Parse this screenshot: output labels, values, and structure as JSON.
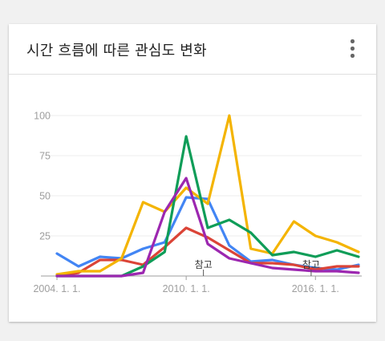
{
  "card": {
    "title": "시간 흐름에 따른 관심도 변화",
    "menu_icon": "more-vert-icon"
  },
  "chart_data": {
    "type": "line",
    "ylim": [
      0,
      100
    ],
    "y_ticks": [
      25,
      50,
      75,
      100
    ],
    "x_tick_labels": [
      "2004. 1. 1.",
      "2010. 1. 1.",
      "2016. 1. 1."
    ],
    "x_tick_positions": [
      0,
      6,
      12
    ],
    "x": [
      0,
      1,
      2,
      3,
      4,
      5,
      6,
      7,
      8,
      9,
      10,
      11,
      12,
      13,
      14
    ],
    "annotations": [
      {
        "label": "참고",
        "x": 6.8
      },
      {
        "label": "참고",
        "x": 11.8
      }
    ],
    "grid": true,
    "series": [
      {
        "color": "#4285f4",
        "values": [
          14,
          6,
          12,
          11,
          17,
          21,
          49,
          48,
          19,
          9,
          10,
          7,
          5,
          4,
          7
        ]
      },
      {
        "color": "#db4437",
        "values": [
          0,
          2,
          10,
          10,
          7,
          18,
          30,
          24,
          16,
          8,
          8,
          7,
          4,
          6,
          6
        ]
      },
      {
        "color": "#f4b400",
        "values": [
          1,
          3,
          3,
          11,
          46,
          40,
          55,
          45,
          100,
          17,
          14,
          34,
          25,
          21,
          15
        ]
      },
      {
        "color": "#0f9d58",
        "values": [
          0,
          0,
          0,
          0,
          6,
          15,
          87,
          30,
          35,
          27,
          13,
          15,
          12,
          16,
          12
        ]
      },
      {
        "color": "#9c27b0",
        "values": [
          0,
          0,
          0,
          0,
          2,
          40,
          61,
          20,
          11,
          8,
          5,
          4,
          3,
          3,
          2
        ]
      }
    ]
  }
}
